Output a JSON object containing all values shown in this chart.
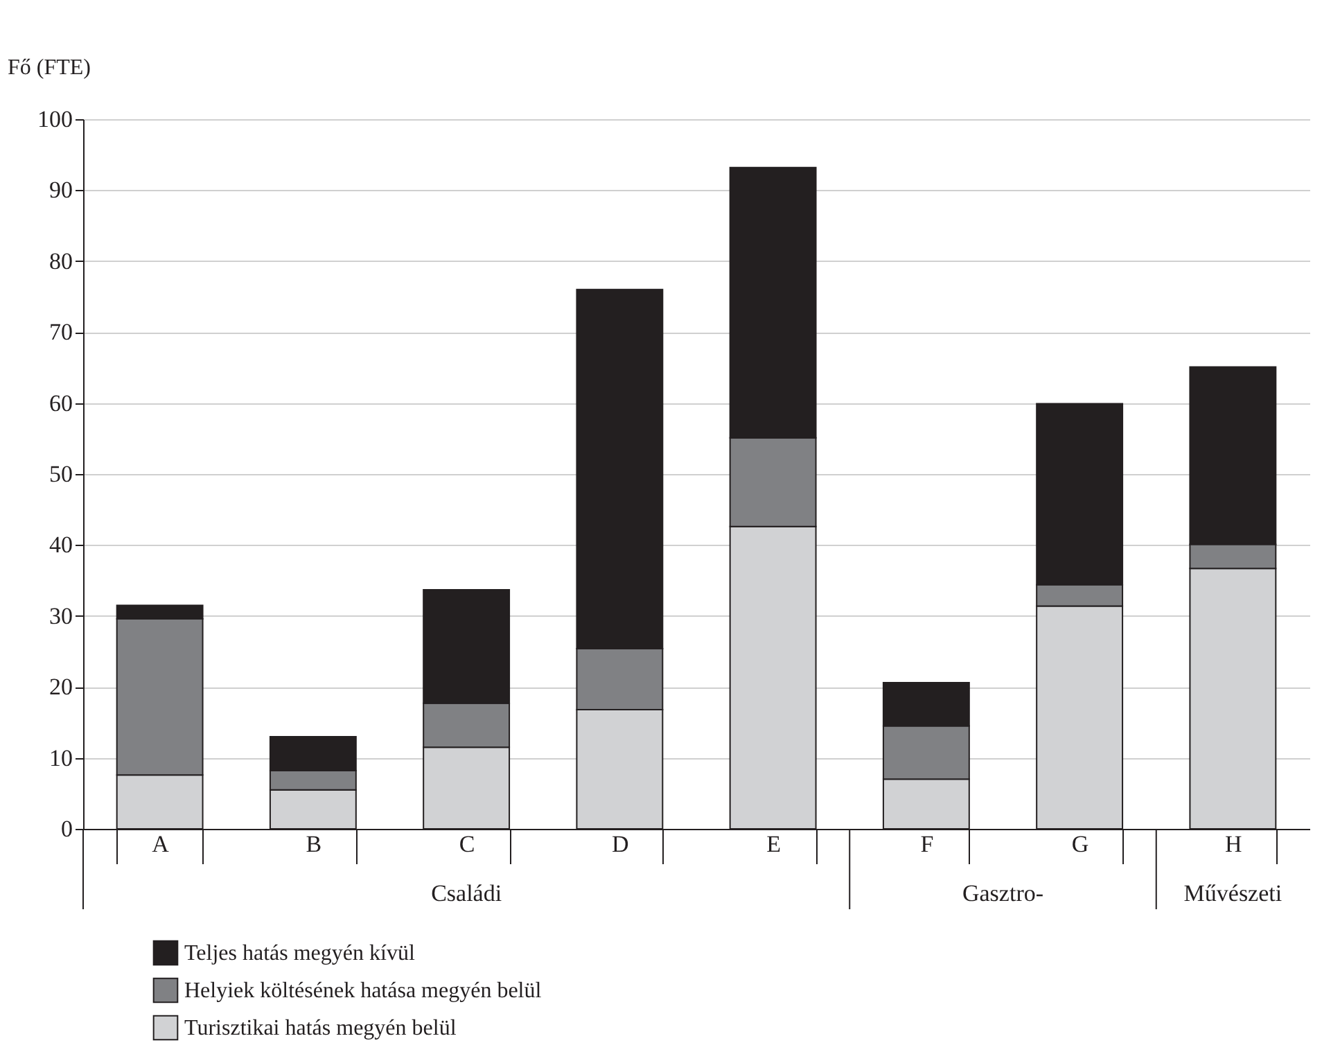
{
  "chart_data": {
    "type": "bar",
    "stacked": true,
    "ylabel": "Fő (FTE)",
    "categories": [
      "A",
      "B",
      "C",
      "D",
      "E",
      "F",
      "G",
      "H"
    ],
    "series": [
      {
        "name": "Turisztikai hatás megyén belül",
        "color": "#d1d2d4",
        "values": [
          7.6,
          5.5,
          11.5,
          16.8,
          42.6,
          7.0,
          31.4,
          36.7
        ]
      },
      {
        "name": "Helyiek költésének hatása megyén belül",
        "color": "#808184",
        "values": [
          22.0,
          2.7,
          6.2,
          8.6,
          12.5,
          7.5,
          3.0,
          3.4
        ]
      },
      {
        "name": "Teljes hatás megyén kívül",
        "color": "#231f20",
        "values": [
          1.9,
          4.8,
          16.0,
          50.6,
          38.1,
          6.1,
          25.5,
          25.0
        ]
      }
    ],
    "annotations": [
      "Családi",
      "Gasztro-",
      "Művészeti"
    ],
    "ylim": [
      0,
      100
    ],
    "yticks": [
      0,
      10,
      20,
      30,
      40,
      50,
      60,
      70,
      80,
      90,
      100
    ],
    "grid": "y",
    "legend": "bottom left"
  }
}
